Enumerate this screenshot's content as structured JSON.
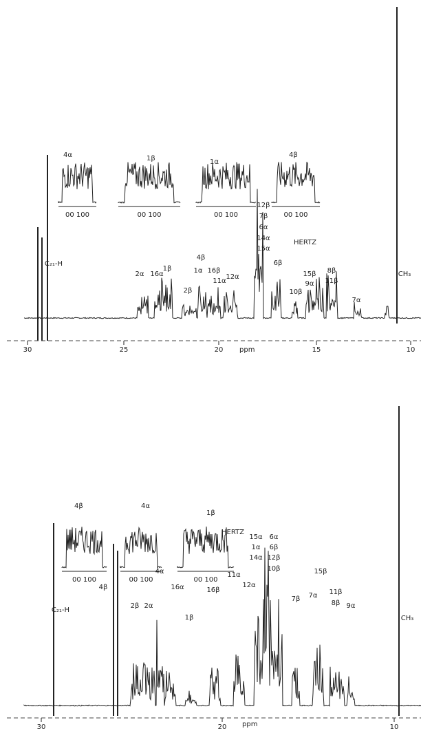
{
  "panels": [
    {
      "ticks": [
        "30",
        "25",
        "20",
        "15",
        "10"
      ],
      "unit": "ppm",
      "hertz": "HERTZ",
      "insets": [
        {
          "label": "4α",
          "scale": "00 100"
        },
        {
          "label": "1β",
          "scale": "00 100"
        },
        {
          "label": "1α",
          "scale": "00 100"
        },
        {
          "label": "4β",
          "scale": "00 100"
        }
      ],
      "peak_labels": [
        "C₂₁-H",
        "2α",
        "16α",
        "1β",
        "2β",
        "1α",
        "4β",
        "16β",
        "11α",
        "12α",
        "12β",
        "7β",
        "6α",
        "14α",
        "15α",
        "6β",
        "10β",
        "15β",
        "9α",
        "8β",
        "11β",
        "7α",
        "CH₃"
      ]
    },
    {
      "ticks": [
        "30",
        "20",
        "10"
      ],
      "unit": "ppm",
      "hertz": "HERTZ",
      "insets": [
        {
          "label": "4β",
          "scale": "00 100"
        },
        {
          "label": "4α",
          "scale": "00 100"
        },
        {
          "label": "1β",
          "scale": "00 100"
        }
      ],
      "peak_labels": [
        "C₂₁-H",
        "4β",
        "2β",
        "2α",
        "4α",
        "16α",
        "1β",
        "16β",
        "11α",
        "12α",
        "15α",
        "1α",
        "14α",
        "6α",
        "6β",
        "12β",
        "10β",
        "7β",
        "7α",
        "15β",
        "11β",
        "8β",
        "9α",
        "CH₃"
      ]
    }
  ]
}
